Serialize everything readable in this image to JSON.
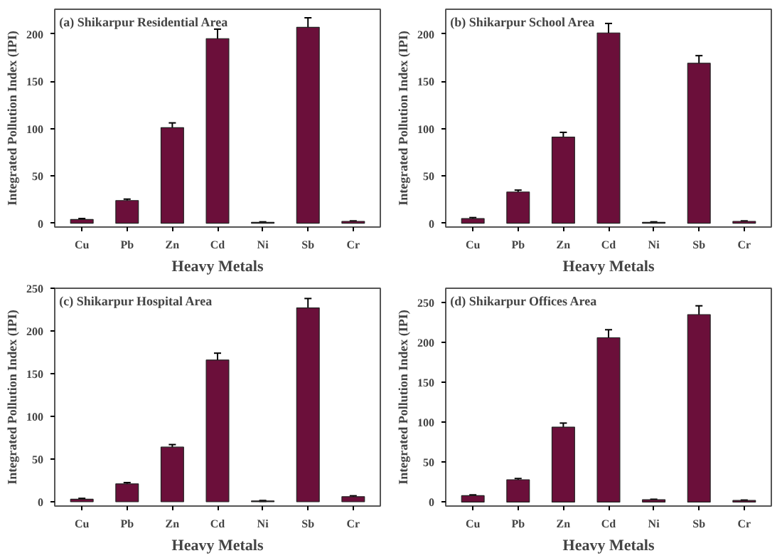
{
  "chart_data": [
    {
      "type": "bar",
      "title": "(a) Shikarpur Residential Area",
      "xlabel": "Heavy Metals",
      "ylabel": "Integrated Pollution Index (IPI)",
      "categories": [
        "Cu",
        "Pb",
        "Zn",
        "Cd",
        "Ni",
        "Sb",
        "Cr"
      ],
      "color": "#6b0f3a",
      "values": [
        4,
        24,
        101,
        195,
        1,
        207,
        2
      ],
      "errors": [
        1,
        1.5,
        5,
        10,
        0.5,
        10,
        0.5
      ],
      "ylim": [
        -4,
        226
      ],
      "yticks": [
        0,
        50,
        100,
        150,
        200
      ]
    },
    {
      "type": "bar",
      "title": "(b) Shikarpur School Area",
      "xlabel": "Heavy Metals",
      "ylabel": "Integrated Pollution Index (IPI)",
      "categories": [
        "Cu",
        "Pb",
        "Zn",
        "Cd",
        "Ni",
        "Sb",
        "Cr"
      ],
      "color": "#6b0f3a",
      "values": [
        5,
        33,
        91,
        201,
        1,
        169,
        2
      ],
      "errors": [
        1,
        2,
        5,
        10,
        0.5,
        8,
        0.5
      ],
      "ylim": [
        -4,
        226
      ],
      "yticks": [
        0,
        50,
        100,
        150,
        200
      ]
    },
    {
      "type": "bar",
      "title": "(c) Shikarpur Hospital Area",
      "xlabel": "Heavy Metals",
      "ylabel": "Integrated Pollution Index (IPI)",
      "categories": [
        "Cu",
        "Pb",
        "Zn",
        "Cd",
        "Ni",
        "Sb",
        "Cr"
      ],
      "color": "#6b0f3a",
      "values": [
        3,
        21,
        64,
        166,
        1,
        227,
        6
      ],
      "errors": [
        1,
        1.5,
        3,
        8,
        0.5,
        11,
        1
      ],
      "ylim": [
        -5,
        250
      ],
      "yticks": [
        0,
        50,
        100,
        150,
        200,
        250
      ]
    },
    {
      "type": "bar",
      "title": "(d) Shikarpur Offices Area",
      "xlabel": "Heavy Metals",
      "ylabel": "Integrated Pollution Index (IPI)",
      "categories": [
        "Cu",
        "Pb",
        "Zn",
        "Cd",
        "Ni",
        "Sb",
        "Cr"
      ],
      "color": "#6b0f3a",
      "values": [
        8,
        28,
        94,
        206,
        3,
        235,
        2
      ],
      "errors": [
        1,
        1.5,
        5,
        10,
        0.5,
        11,
        0.5
      ],
      "ylim": [
        -5,
        268
      ],
      "yticks": [
        0,
        50,
        100,
        150,
        200,
        250
      ]
    }
  ]
}
